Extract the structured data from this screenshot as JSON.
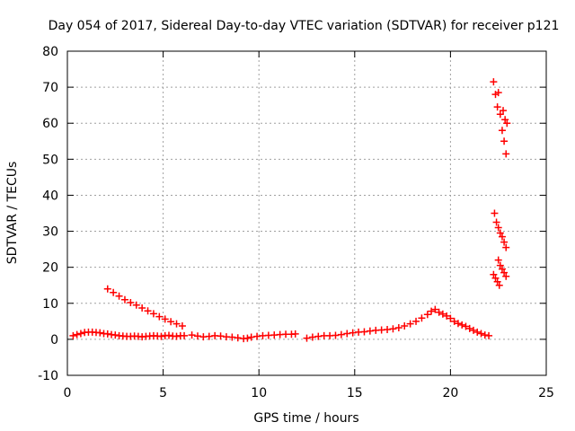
{
  "chart_data": {
    "type": "scatter",
    "title": "Day 054 of 2017, Sidereal Day-to-day VTEC variation (SDTVAR) for receiver p121",
    "xlabel": "GPS time / hours",
    "ylabel": "SDTVAR / TECUs",
    "xlim": [
      0,
      25
    ],
    "ylim": [
      -10,
      80
    ],
    "xticks": [
      0,
      5,
      10,
      15,
      20,
      25
    ],
    "yticks": [
      -10,
      0,
      10,
      20,
      30,
      40,
      50,
      60,
      70,
      80
    ],
    "grid": true,
    "legend": "none",
    "marker": "plus",
    "color": "#ff0000",
    "series": [
      {
        "values": [
          [
            0.3,
            1.0
          ],
          [
            0.5,
            1.3
          ],
          [
            0.7,
            1.6
          ],
          [
            0.9,
            1.9
          ],
          [
            1.1,
            2.0
          ],
          [
            1.3,
            2.0
          ],
          [
            1.5,
            1.9
          ],
          [
            1.7,
            1.8
          ],
          [
            1.9,
            1.6
          ],
          [
            2.1,
            1.5
          ],
          [
            2.3,
            1.3
          ],
          [
            2.5,
            1.2
          ],
          [
            2.7,
            1.0
          ],
          [
            2.9,
            0.9
          ],
          [
            3.1,
            0.8
          ],
          [
            3.3,
            0.8
          ],
          [
            3.5,
            0.9
          ],
          [
            3.7,
            0.8
          ],
          [
            3.9,
            0.7
          ],
          [
            4.1,
            0.8
          ],
          [
            4.3,
            0.9
          ],
          [
            4.5,
            1.0
          ],
          [
            4.7,
            0.9
          ],
          [
            4.9,
            0.8
          ],
          [
            5.1,
            1.0
          ],
          [
            5.3,
            1.1
          ],
          [
            5.5,
            0.9
          ],
          [
            5.7,
            0.8
          ],
          [
            5.9,
            1.0
          ],
          [
            6.1,
            1.0
          ],
          [
            6.5,
            1.2
          ],
          [
            6.8,
            0.9
          ],
          [
            7.1,
            0.7
          ],
          [
            7.4,
            0.8
          ],
          [
            7.7,
            1.0
          ],
          [
            8.0,
            0.9
          ],
          [
            8.3,
            0.7
          ],
          [
            8.6,
            0.6
          ],
          [
            8.9,
            0.4
          ],
          [
            9.2,
            0.2
          ],
          [
            9.4,
            0.3
          ],
          [
            9.6,
            0.6
          ],
          [
            9.9,
            0.8
          ],
          [
            10.2,
            1.0
          ],
          [
            10.5,
            1.1
          ],
          [
            10.8,
            1.2
          ],
          [
            11.1,
            1.3
          ],
          [
            11.4,
            1.4
          ],
          [
            11.7,
            1.4
          ],
          [
            11.9,
            1.5
          ],
          [
            12.5,
            0.3
          ],
          [
            12.8,
            0.6
          ],
          [
            13.1,
            0.8
          ],
          [
            13.4,
            1.0
          ],
          [
            13.7,
            1.0
          ],
          [
            14.0,
            1.1
          ],
          [
            14.3,
            1.3
          ],
          [
            14.6,
            1.6
          ],
          [
            14.9,
            1.8
          ],
          [
            15.2,
            2.0
          ],
          [
            15.5,
            2.1
          ],
          [
            15.8,
            2.3
          ],
          [
            16.1,
            2.5
          ],
          [
            16.4,
            2.6
          ],
          [
            16.7,
            2.7
          ],
          [
            17.0,
            2.9
          ],
          [
            17.3,
            3.2
          ],
          [
            17.6,
            3.7
          ],
          [
            17.9,
            4.3
          ],
          [
            18.2,
            5.0
          ],
          [
            18.5,
            5.9
          ],
          [
            18.8,
            6.9
          ],
          [
            19.0,
            7.8
          ],
          [
            19.2,
            8.3
          ],
          [
            19.4,
            7.5
          ],
          [
            19.6,
            7.0
          ],
          [
            19.8,
            6.5
          ],
          [
            20.0,
            5.8
          ],
          [
            20.2,
            5.0
          ],
          [
            20.4,
            4.4
          ],
          [
            20.6,
            4.0
          ],
          [
            20.8,
            3.6
          ],
          [
            21.0,
            3.0
          ],
          [
            21.2,
            2.5
          ],
          [
            21.4,
            2.0
          ],
          [
            21.6,
            1.6
          ],
          [
            21.8,
            1.2
          ],
          [
            22.0,
            1.0
          ],
          [
            2.1,
            14.0
          ],
          [
            2.4,
            13.0
          ],
          [
            2.7,
            12.0
          ],
          [
            3.0,
            11.0
          ],
          [
            3.3,
            10.2
          ],
          [
            3.6,
            9.5
          ],
          [
            3.9,
            8.7
          ],
          [
            4.2,
            7.9
          ],
          [
            4.5,
            7.1
          ],
          [
            4.8,
            6.3
          ],
          [
            5.1,
            5.6
          ],
          [
            5.4,
            4.9
          ],
          [
            5.7,
            4.3
          ],
          [
            6.0,
            3.7
          ],
          [
            22.25,
            71.5
          ],
          [
            22.35,
            68.0
          ],
          [
            22.45,
            64.5
          ],
          [
            22.5,
            68.5
          ],
          [
            22.6,
            62.5
          ],
          [
            22.7,
            58.0
          ],
          [
            22.75,
            63.5
          ],
          [
            22.8,
            55.0
          ],
          [
            22.85,
            61.0
          ],
          [
            22.9,
            51.5
          ],
          [
            22.95,
            60.0
          ],
          [
            22.3,
            35.0
          ],
          [
            22.4,
            32.5
          ],
          [
            22.5,
            31.0
          ],
          [
            22.6,
            29.5
          ],
          [
            22.7,
            28.5
          ],
          [
            22.8,
            27.0
          ],
          [
            22.9,
            25.5
          ],
          [
            22.5,
            22.0
          ],
          [
            22.6,
            20.5
          ],
          [
            22.7,
            19.5
          ],
          [
            22.8,
            18.5
          ],
          [
            22.9,
            17.5
          ],
          [
            22.25,
            18.0
          ],
          [
            22.35,
            17.0
          ],
          [
            22.45,
            16.0
          ],
          [
            22.55,
            15.0
          ]
        ]
      }
    ]
  }
}
